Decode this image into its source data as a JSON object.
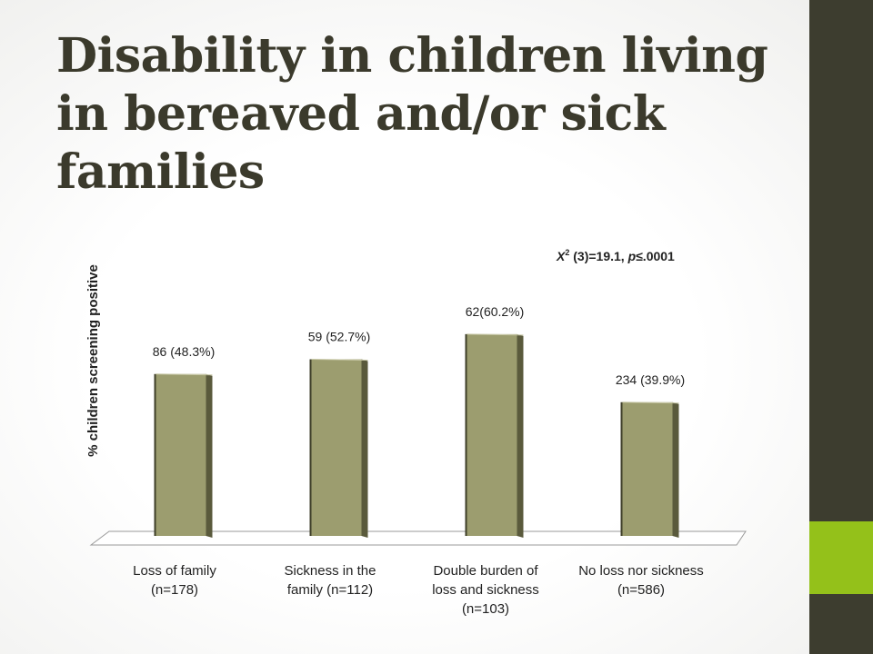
{
  "title": "Disability in children living in bereaved and/or sick families",
  "colors": {
    "bar_front": "#9c9d6f",
    "bar_side": "#5a5a3c",
    "bar_left_edge": "#3e3e28",
    "sidebar": "#3d3d2f",
    "sidebar_accent": "#94c11a",
    "title": "#3b3a2c"
  },
  "chart_data": {
    "type": "bar",
    "ylabel": "% children screening positive",
    "annotation": {
      "chi": "X",
      "sup": "2",
      "rest": " (3)=19.1, ",
      "p": "p",
      "tail": "≤.0001"
    },
    "categories": [
      [
        "Loss of family",
        "(n=178)"
      ],
      [
        "Sickness in the",
        "family (n=112)"
      ],
      [
        "Double burden of",
        "loss and sickness",
        "(n=103)"
      ],
      [
        "No loss nor sickness",
        "(n=586)"
      ]
    ],
    "values": [
      48.3,
      52.7,
      60.2,
      39.9
    ],
    "data_labels": [
      "86 (48.3%)",
      "59 (52.7%)",
      "62(60.2%)",
      "234 (39.9%)"
    ],
    "ylim": [
      0,
      100
    ],
    "grid": false,
    "legend": "none"
  }
}
